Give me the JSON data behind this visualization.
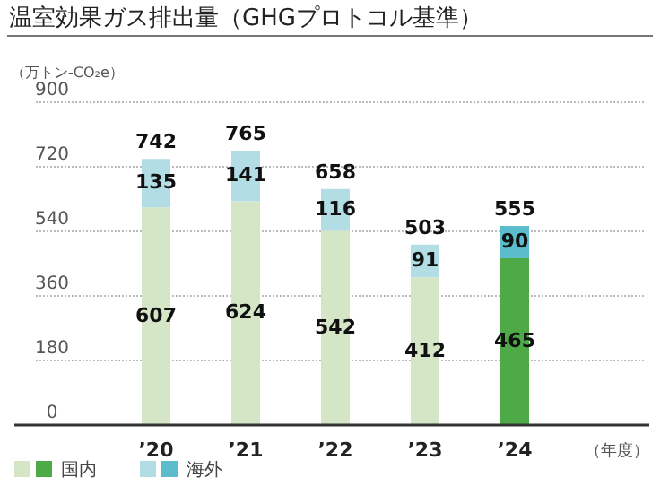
{
  "chart_data": {
    "type": "bar",
    "title": "温室効果ガス排出量（GHGプロトコル基準）",
    "ylabel": "（万トン-CO₂e）",
    "xlabel": "（年度）",
    "categories": [
      "’20",
      "’21",
      "’22",
      "’23",
      "’24"
    ],
    "stacked": true,
    "data_labels": true,
    "totals": [
      "742",
      "765",
      "658",
      "503",
      "555"
    ],
    "series": [
      {
        "name": "国内",
        "color": "#4daa47",
        "colors": [
          "#d4e6c6",
          "#d4e6c6",
          "#d4e6c6",
          "#d4e6c6",
          "#4daa47"
        ],
        "values": [
          607,
          624,
          542,
          412,
          465
        ]
      },
      {
        "name": "海外",
        "color": "#5bbccc",
        "colors": [
          "#b3dde5",
          "#b3dde5",
          "#b3dde5",
          "#b3dde5",
          "#5bbccc"
        ],
        "values": [
          135,
          141,
          116,
          91,
          90
        ]
      }
    ],
    "ylim": [
      0,
      900
    ],
    "yticks": [
      0,
      180,
      360,
      540,
      720,
      900
    ],
    "grid": "y",
    "legend": "bottom left"
  }
}
